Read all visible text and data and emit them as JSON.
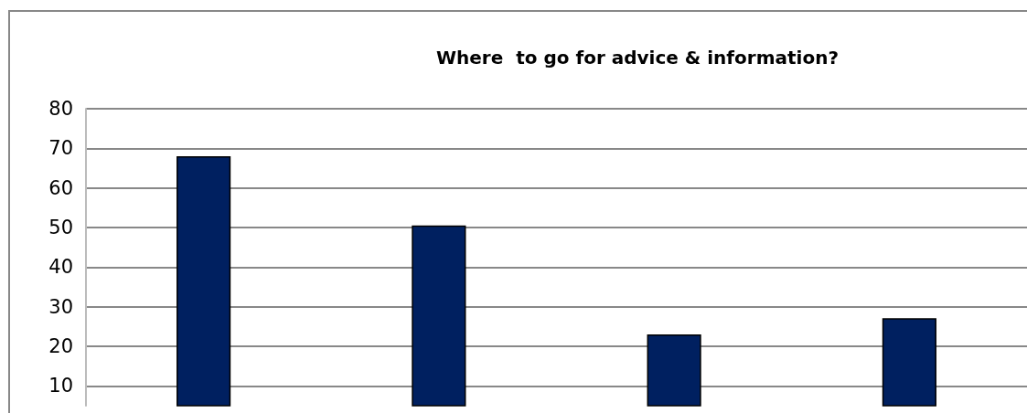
{
  "chart_data": {
    "type": "bar",
    "title": "Where  to go for advice & information?",
    "categories": [
      null,
      null,
      null,
      null
    ],
    "values": [
      68,
      50.5,
      23,
      27.1
    ],
    "color": "#002060",
    "ylim": [
      5,
      80
    ],
    "yticks": [
      10,
      20,
      30,
      40,
      50,
      60,
      70,
      80
    ],
    "grid": "y"
  }
}
